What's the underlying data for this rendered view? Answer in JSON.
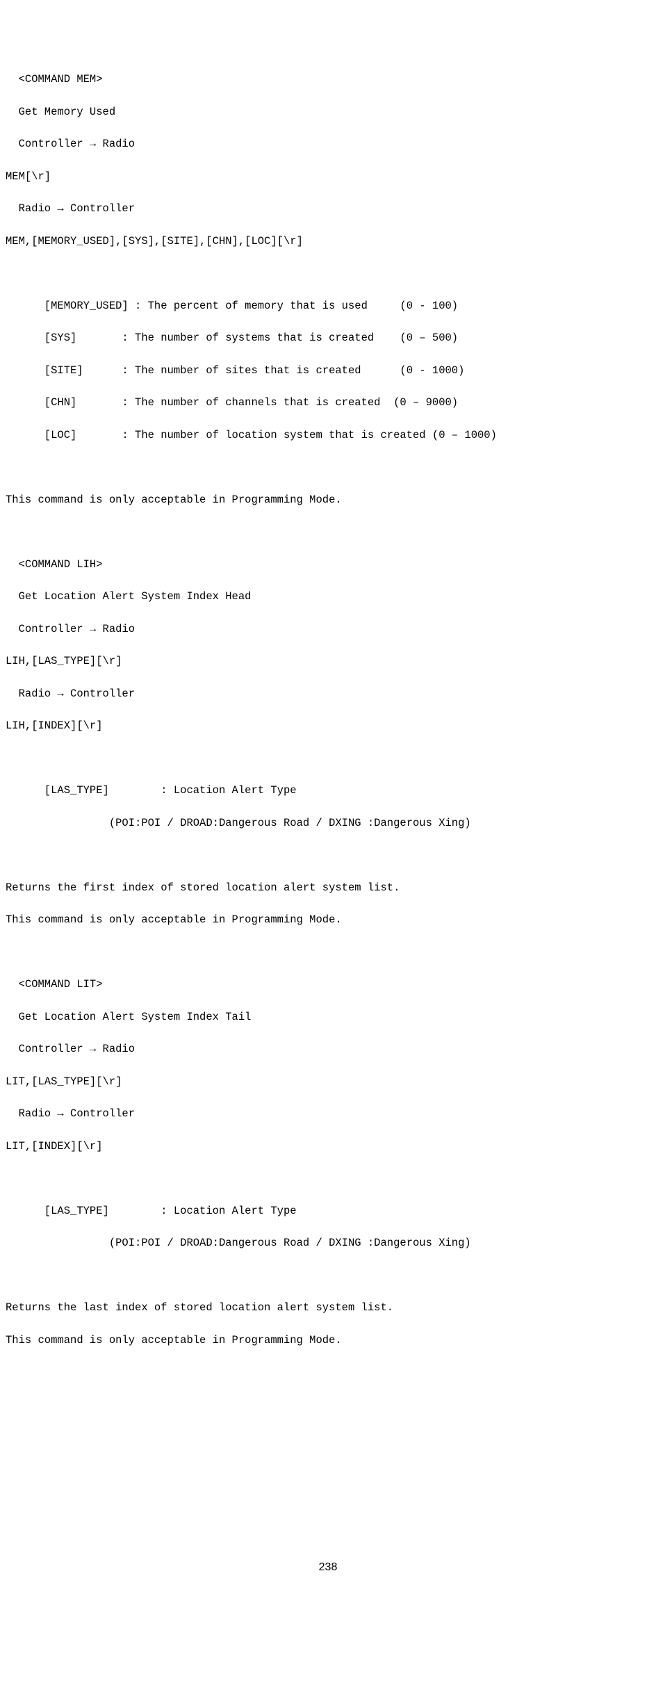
{
  "mem": {
    "header": "  <COMMAND MEM>",
    "title": "  Get Memory Used",
    "ctrl_to_radio": "  Controller → Radio",
    "req": "MEM[\\r]",
    "radio_to_ctrl": "  Radio → Controller",
    "resp": "MEM,[MEMORY_USED],[SYS],[SITE],[CHN],[LOC][\\r]",
    "blank1": "",
    "p1": "      [MEMORY_USED] : The percent of memory that is used     (0 - 100)",
    "p2": "      [SYS]       : The number of systems that is created    (0 – 500)",
    "p3": "      [SITE]      : The number of sites that is created      (0 - 1000)",
    "p4": "      [CHN]       : The number of channels that is created  (0 – 9000)",
    "p5": "      [LOC]       : The number of location system that is created (0 – 1000)",
    "blank2": "",
    "note": "This command is only acceptable in Programming Mode."
  },
  "lih": {
    "blank0": "",
    "header": "  <COMMAND LIH>",
    "title": "  Get Location Alert System Index Head",
    "ctrl_to_radio": "  Controller → Radio",
    "req": "LIH,[LAS_TYPE][\\r]",
    "radio_to_ctrl": "  Radio → Controller",
    "resp": "LIH,[INDEX][\\r]",
    "blank1": "",
    "p1": "      [LAS_TYPE]        : Location Alert Type",
    "p2": "                (POI:POI / DROAD:Dangerous Road / DXING :Dangerous Xing)",
    "blank2": "",
    "note1": "Returns the first index of stored location alert system list.",
    "note2": "This command is only acceptable in Programming Mode."
  },
  "lit": {
    "blank0": "",
    "header": "  <COMMAND LIT>",
    "title": "  Get Location Alert System Index Tail",
    "ctrl_to_radio": "  Controller → Radio",
    "req": "LIT,[LAS_TYPE][\\r]",
    "radio_to_ctrl": "  Radio → Controller",
    "resp": "LIT,[INDEX][\\r]",
    "blank1": "",
    "p1": "      [LAS_TYPE]        : Location Alert Type",
    "p2": "                (POI:POI / DROAD:Dangerous Road / DXING :Dangerous Xing)",
    "blank2": "",
    "note1": "Returns the last index of stored location alert system list.",
    "note2": "This command is only acceptable in Programming Mode."
  },
  "page_number": "238"
}
